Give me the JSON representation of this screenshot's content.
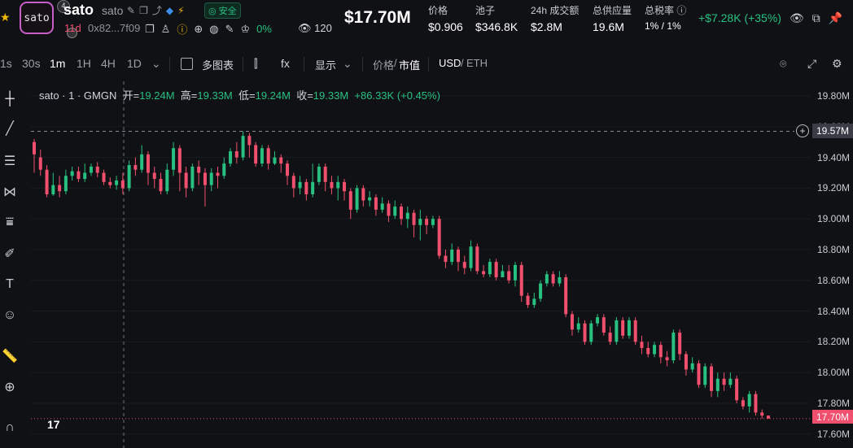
{
  "header": {
    "logo_text": "sato",
    "logo_badge": "4",
    "name": "sato",
    "subname": "sato",
    "safe_label": "安全",
    "age": "11d",
    "address": "0x82...7f09",
    "holders_pct": "0%",
    "views": "120",
    "market_cap": "$17.70M",
    "change": "+$7.28K (+35%)",
    "stats": [
      {
        "label": "价格",
        "value": "$0.906"
      },
      {
        "label": "池子",
        "value": "$346.8K"
      },
      {
        "label": "24h 成交额",
        "value": "$2.8M"
      },
      {
        "label": "总供应量",
        "value": "19.6M"
      },
      {
        "label": "总税率",
        "value": "1% / 1%"
      }
    ]
  },
  "toolbar": {
    "intervals": [
      "1s",
      "30s",
      "1m",
      "1H",
      "4H",
      "1D"
    ],
    "active_interval": "1m",
    "multi_chart": "多图表",
    "fx": "fx",
    "display": "显示",
    "price_label": "价格",
    "mcap_label": "市值",
    "usd": "USD",
    "eth": "ETH"
  },
  "chart": {
    "legend_title": "sato · 1 · GMGN",
    "open_label": "开=",
    "open": "19.24M",
    "high_label": "高=",
    "high": "19.33M",
    "low_label": "低=",
    "low": "19.24M",
    "close_label": "收=",
    "close": "19.33M",
    "change": "+86.33K (+0.45%)",
    "hover_value": "19.57M",
    "current_value": "17.70M",
    "y_ticks": [
      "19.80M",
      "19.60M",
      "19.40M",
      "19.20M",
      "19.00M",
      "18.80M",
      "18.60M",
      "18.40M",
      "18.20M",
      "18.00M",
      "17.80M",
      "17.60M"
    ],
    "up_color": "#28c081",
    "down_color": "#f0506e"
  },
  "chart_data": {
    "type": "candlestick",
    "ylim": [
      17.6,
      19.85
    ],
    "y_unit": "M",
    "candles": [
      [
        19.5,
        19.42,
        19.52,
        19.3
      ],
      [
        19.4,
        19.32,
        19.45,
        19.28
      ],
      [
        19.32,
        19.16,
        19.35,
        19.14
      ],
      [
        19.16,
        19.22,
        19.3,
        19.15
      ],
      [
        19.22,
        19.18,
        19.28,
        19.14
      ],
      [
        19.18,
        19.28,
        19.32,
        19.16
      ],
      [
        19.28,
        19.31,
        19.34,
        19.25
      ],
      [
        19.31,
        19.26,
        19.34,
        19.24
      ],
      [
        19.26,
        19.3,
        19.36,
        19.24
      ],
      [
        19.3,
        19.34,
        19.36,
        19.28
      ],
      [
        19.34,
        19.3,
        19.37,
        19.27
      ],
      [
        19.3,
        19.24,
        19.32,
        19.22
      ],
      [
        19.24,
        19.22,
        19.27,
        19.2
      ],
      [
        19.22,
        19.25,
        19.28,
        19.19
      ],
      [
        19.25,
        19.2,
        19.3,
        19.16
      ],
      [
        19.2,
        19.35,
        19.38,
        19.18
      ],
      [
        19.35,
        19.32,
        19.4,
        19.28
      ],
      [
        19.32,
        19.42,
        19.48,
        19.3
      ],
      [
        19.42,
        19.3,
        19.44,
        19.22
      ],
      [
        19.3,
        19.26,
        19.34,
        19.2
      ],
      [
        19.26,
        19.18,
        19.3,
        19.16
      ],
      [
        19.18,
        19.32,
        19.36,
        19.16
      ],
      [
        19.32,
        19.46,
        19.5,
        19.28
      ],
      [
        19.46,
        19.3,
        19.48,
        19.18
      ],
      [
        19.3,
        19.2,
        19.34,
        19.14
      ],
      [
        19.2,
        19.34,
        19.36,
        19.18
      ],
      [
        19.34,
        19.3,
        19.38,
        19.22
      ],
      [
        19.3,
        19.22,
        19.33,
        19.08
      ],
      [
        19.22,
        19.3,
        19.33,
        19.18
      ],
      [
        19.3,
        19.28,
        19.34,
        19.2
      ],
      [
        19.28,
        19.36,
        19.4,
        19.26
      ],
      [
        19.36,
        19.44,
        19.46,
        19.34
      ],
      [
        19.44,
        19.4,
        19.5,
        19.36
      ],
      [
        19.4,
        19.54,
        19.57,
        19.38
      ],
      [
        19.54,
        19.48,
        19.56,
        19.4
      ],
      [
        19.48,
        19.36,
        19.5,
        19.34
      ],
      [
        19.36,
        19.46,
        19.48,
        19.34
      ],
      [
        19.46,
        19.36,
        19.48,
        19.32
      ],
      [
        19.36,
        19.4,
        19.44,
        19.35
      ],
      [
        19.4,
        19.36,
        19.42,
        19.3
      ],
      [
        19.36,
        19.28,
        19.38,
        19.22
      ],
      [
        19.28,
        19.2,
        19.3,
        19.14
      ],
      [
        19.2,
        19.24,
        19.28,
        19.16
      ],
      [
        19.24,
        19.16,
        19.26,
        19.12
      ],
      [
        19.16,
        19.24,
        19.36,
        19.14
      ],
      [
        19.24,
        19.34,
        19.36,
        19.22
      ],
      [
        19.34,
        19.24,
        19.36,
        19.18
      ],
      [
        19.24,
        19.2,
        19.28,
        19.16
      ],
      [
        19.2,
        19.24,
        19.28,
        19.12
      ],
      [
        19.24,
        19.18,
        19.26,
        19.12
      ],
      [
        19.18,
        19.06,
        19.2,
        19.0
      ],
      [
        19.06,
        19.2,
        19.22,
        19.04
      ],
      [
        19.2,
        19.12,
        19.22,
        19.08
      ],
      [
        19.12,
        19.14,
        19.18,
        19.08
      ],
      [
        19.14,
        19.06,
        19.16,
        19.02
      ],
      [
        19.06,
        19.1,
        19.14,
        19.04
      ],
      [
        19.1,
        19.02,
        19.12,
        18.98
      ],
      [
        19.02,
        19.08,
        19.12,
        19.0
      ],
      [
        19.08,
        19.0,
        19.1,
        18.96
      ],
      [
        19.0,
        19.04,
        19.08,
        18.94
      ],
      [
        19.04,
        18.96,
        19.06,
        18.88
      ],
      [
        18.96,
        19.0,
        19.06,
        18.86
      ],
      [
        19.0,
        18.96,
        19.02,
        18.9
      ],
      [
        18.96,
        19.0,
        19.02,
        18.94
      ],
      [
        19.0,
        18.76,
        19.02,
        18.74
      ],
      [
        18.76,
        18.72,
        18.8,
        18.68
      ],
      [
        18.72,
        18.8,
        18.84,
        18.7
      ],
      [
        18.8,
        18.72,
        18.82,
        18.66
      ],
      [
        18.72,
        18.68,
        18.76,
        18.64
      ],
      [
        18.68,
        18.82,
        18.86,
        18.66
      ],
      [
        18.82,
        18.66,
        18.84,
        18.64
      ],
      [
        18.66,
        18.64,
        18.7,
        18.62
      ],
      [
        18.64,
        18.72,
        18.74,
        18.62
      ],
      [
        18.72,
        18.62,
        18.74,
        18.6
      ],
      [
        18.62,
        18.66,
        18.7,
        18.62
      ],
      [
        18.66,
        18.6,
        18.7,
        18.58
      ],
      [
        18.6,
        18.7,
        18.72,
        18.56
      ],
      [
        18.7,
        18.5,
        18.72,
        18.46
      ],
      [
        18.5,
        18.44,
        18.52,
        18.42
      ],
      [
        18.44,
        18.48,
        18.52,
        18.42
      ],
      [
        18.48,
        18.58,
        18.6,
        18.46
      ],
      [
        18.58,
        18.64,
        18.66,
        18.56
      ],
      [
        18.64,
        18.58,
        18.66,
        18.56
      ],
      [
        18.58,
        18.62,
        18.66,
        18.56
      ],
      [
        18.62,
        18.38,
        18.64,
        18.36
      ],
      [
        18.38,
        18.28,
        18.4,
        18.24
      ],
      [
        18.28,
        18.32,
        18.36,
        18.26
      ],
      [
        18.32,
        18.2,
        18.34,
        18.18
      ],
      [
        18.2,
        18.32,
        18.34,
        18.18
      ],
      [
        18.32,
        18.36,
        18.38,
        18.3
      ],
      [
        18.36,
        18.26,
        18.38,
        18.24
      ],
      [
        18.26,
        18.2,
        18.3,
        18.18
      ],
      [
        18.2,
        18.34,
        18.36,
        18.18
      ],
      [
        18.34,
        18.24,
        18.36,
        18.22
      ],
      [
        18.24,
        18.34,
        18.36,
        18.22
      ],
      [
        18.34,
        18.2,
        18.36,
        18.18
      ],
      [
        18.2,
        18.16,
        18.24,
        18.12
      ],
      [
        18.16,
        18.12,
        18.2,
        18.1
      ],
      [
        18.12,
        18.18,
        18.2,
        18.1
      ],
      [
        18.18,
        18.1,
        18.2,
        18.06
      ],
      [
        18.1,
        18.08,
        18.14,
        18.04
      ],
      [
        18.08,
        18.26,
        18.28,
        18.06
      ],
      [
        18.26,
        18.12,
        18.28,
        18.08
      ],
      [
        18.12,
        18.02,
        18.14,
        17.98
      ],
      [
        18.02,
        18.06,
        18.1,
        18.0
      ],
      [
        18.06,
        17.92,
        18.08,
        17.9
      ],
      [
        17.92,
        18.04,
        18.06,
        17.9
      ],
      [
        18.04,
        17.88,
        18.06,
        17.84
      ],
      [
        17.88,
        17.96,
        18.0,
        17.84
      ],
      [
        17.96,
        17.92,
        18.0,
        17.88
      ],
      [
        17.92,
        17.96,
        18.0,
        17.9
      ],
      [
        17.96,
        17.82,
        17.98,
        17.8
      ],
      [
        17.82,
        17.78,
        17.84,
        17.76
      ],
      [
        17.78,
        17.86,
        17.88,
        17.74
      ],
      [
        17.86,
        17.74,
        17.88,
        17.72
      ],
      [
        17.74,
        17.72,
        17.76,
        17.7
      ],
      [
        17.72,
        17.7,
        17.72,
        17.7
      ]
    ]
  }
}
